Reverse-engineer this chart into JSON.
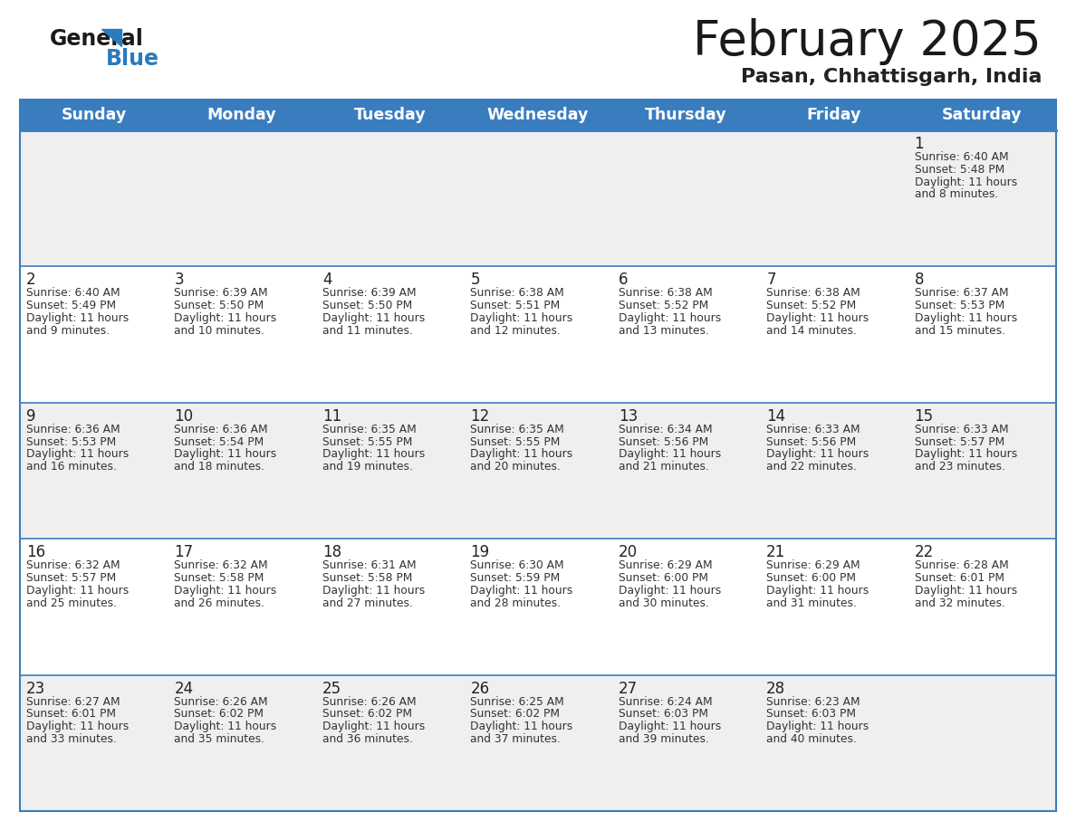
{
  "title": "February 2025",
  "subtitle": "Pasan, Chhattisgarh, India",
  "days_of_week": [
    "Sunday",
    "Monday",
    "Tuesday",
    "Wednesday",
    "Thursday",
    "Friday",
    "Saturday"
  ],
  "header_bg_color": "#3a7dbf",
  "header_text_color": "#ffffff",
  "row_bg_odd": "#efefef",
  "row_bg_even": "#ffffff",
  "cell_text_color": "#333333",
  "day_num_color": "#222222",
  "border_color": "#3a7dbf",
  "title_color": "#1a1a1a",
  "subtitle_color": "#222222",
  "logo_general_color": "#1a1a1a",
  "logo_blue_color": "#2a7abf",
  "calendar_data": [
    [
      null,
      null,
      null,
      null,
      null,
      null,
      {
        "day": 1,
        "sunrise": "6:40 AM",
        "sunset": "5:48 PM",
        "daylight": "11 hours",
        "daylight2": "and 8 minutes."
      }
    ],
    [
      {
        "day": 2,
        "sunrise": "6:40 AM",
        "sunset": "5:49 PM",
        "daylight": "11 hours",
        "daylight2": "and 9 minutes."
      },
      {
        "day": 3,
        "sunrise": "6:39 AM",
        "sunset": "5:50 PM",
        "daylight": "11 hours",
        "daylight2": "and 10 minutes."
      },
      {
        "day": 4,
        "sunrise": "6:39 AM",
        "sunset": "5:50 PM",
        "daylight": "11 hours",
        "daylight2": "and 11 minutes."
      },
      {
        "day": 5,
        "sunrise": "6:38 AM",
        "sunset": "5:51 PM",
        "daylight": "11 hours",
        "daylight2": "and 12 minutes."
      },
      {
        "day": 6,
        "sunrise": "6:38 AM",
        "sunset": "5:52 PM",
        "daylight": "11 hours",
        "daylight2": "and 13 minutes."
      },
      {
        "day": 7,
        "sunrise": "6:38 AM",
        "sunset": "5:52 PM",
        "daylight": "11 hours",
        "daylight2": "and 14 minutes."
      },
      {
        "day": 8,
        "sunrise": "6:37 AM",
        "sunset": "5:53 PM",
        "daylight": "11 hours",
        "daylight2": "and 15 minutes."
      }
    ],
    [
      {
        "day": 9,
        "sunrise": "6:36 AM",
        "sunset": "5:53 PM",
        "daylight": "11 hours",
        "daylight2": "and 16 minutes."
      },
      {
        "day": 10,
        "sunrise": "6:36 AM",
        "sunset": "5:54 PM",
        "daylight": "11 hours",
        "daylight2": "and 18 minutes."
      },
      {
        "day": 11,
        "sunrise": "6:35 AM",
        "sunset": "5:55 PM",
        "daylight": "11 hours",
        "daylight2": "and 19 minutes."
      },
      {
        "day": 12,
        "sunrise": "6:35 AM",
        "sunset": "5:55 PM",
        "daylight": "11 hours",
        "daylight2": "and 20 minutes."
      },
      {
        "day": 13,
        "sunrise": "6:34 AM",
        "sunset": "5:56 PM",
        "daylight": "11 hours",
        "daylight2": "and 21 minutes."
      },
      {
        "day": 14,
        "sunrise": "6:33 AM",
        "sunset": "5:56 PM",
        "daylight": "11 hours",
        "daylight2": "and 22 minutes."
      },
      {
        "day": 15,
        "sunrise": "6:33 AM",
        "sunset": "5:57 PM",
        "daylight": "11 hours",
        "daylight2": "and 23 minutes."
      }
    ],
    [
      {
        "day": 16,
        "sunrise": "6:32 AM",
        "sunset": "5:57 PM",
        "daylight": "11 hours",
        "daylight2": "and 25 minutes."
      },
      {
        "day": 17,
        "sunrise": "6:32 AM",
        "sunset": "5:58 PM",
        "daylight": "11 hours",
        "daylight2": "and 26 minutes."
      },
      {
        "day": 18,
        "sunrise": "6:31 AM",
        "sunset": "5:58 PM",
        "daylight": "11 hours",
        "daylight2": "and 27 minutes."
      },
      {
        "day": 19,
        "sunrise": "6:30 AM",
        "sunset": "5:59 PM",
        "daylight": "11 hours",
        "daylight2": "and 28 minutes."
      },
      {
        "day": 20,
        "sunrise": "6:29 AM",
        "sunset": "6:00 PM",
        "daylight": "11 hours",
        "daylight2": "and 30 minutes."
      },
      {
        "day": 21,
        "sunrise": "6:29 AM",
        "sunset": "6:00 PM",
        "daylight": "11 hours",
        "daylight2": "and 31 minutes."
      },
      {
        "day": 22,
        "sunrise": "6:28 AM",
        "sunset": "6:01 PM",
        "daylight": "11 hours",
        "daylight2": "and 32 minutes."
      }
    ],
    [
      {
        "day": 23,
        "sunrise": "6:27 AM",
        "sunset": "6:01 PM",
        "daylight": "11 hours",
        "daylight2": "and 33 minutes."
      },
      {
        "day": 24,
        "sunrise": "6:26 AM",
        "sunset": "6:02 PM",
        "daylight": "11 hours",
        "daylight2": "and 35 minutes."
      },
      {
        "day": 25,
        "sunrise": "6:26 AM",
        "sunset": "6:02 PM",
        "daylight": "11 hours",
        "daylight2": "and 36 minutes."
      },
      {
        "day": 26,
        "sunrise": "6:25 AM",
        "sunset": "6:02 PM",
        "daylight": "11 hours",
        "daylight2": "and 37 minutes."
      },
      {
        "day": 27,
        "sunrise": "6:24 AM",
        "sunset": "6:03 PM",
        "daylight": "11 hours",
        "daylight2": "and 39 minutes."
      },
      {
        "day": 28,
        "sunrise": "6:23 AM",
        "sunset": "6:03 PM",
        "daylight": "11 hours",
        "daylight2": "and 40 minutes."
      },
      null
    ]
  ]
}
